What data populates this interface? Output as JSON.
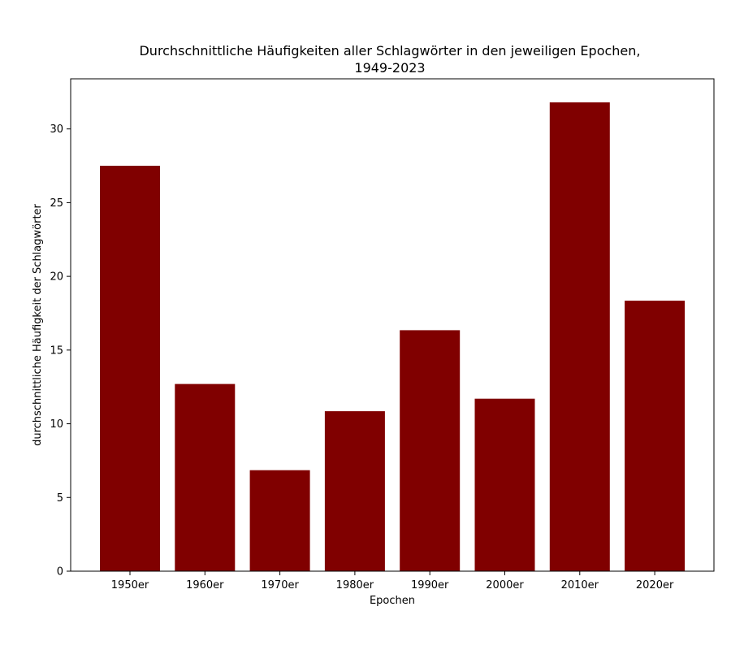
{
  "chart_data": {
    "type": "bar",
    "title_lines": [
      "Durchschnittliche Häufigkeiten aller Schlagwörter in den jeweiligen Epochen,",
      "1949-2023"
    ],
    "xlabel": "Epochen",
    "ylabel": "durchschnittliche Häufigkeit der Schlagwörter",
    "categories": [
      "1950er",
      "1960er",
      "1970er",
      "1980er",
      "1990er",
      "2000er",
      "2010er",
      "2020er"
    ],
    "values": [
      27.5,
      12.7,
      6.85,
      10.85,
      16.35,
      11.7,
      31.8,
      18.35
    ],
    "ylim": [
      0,
      33.4
    ],
    "yticks": [
      0,
      5,
      10,
      15,
      20,
      25,
      30
    ],
    "bar_color": "#800000",
    "grid": false
  }
}
